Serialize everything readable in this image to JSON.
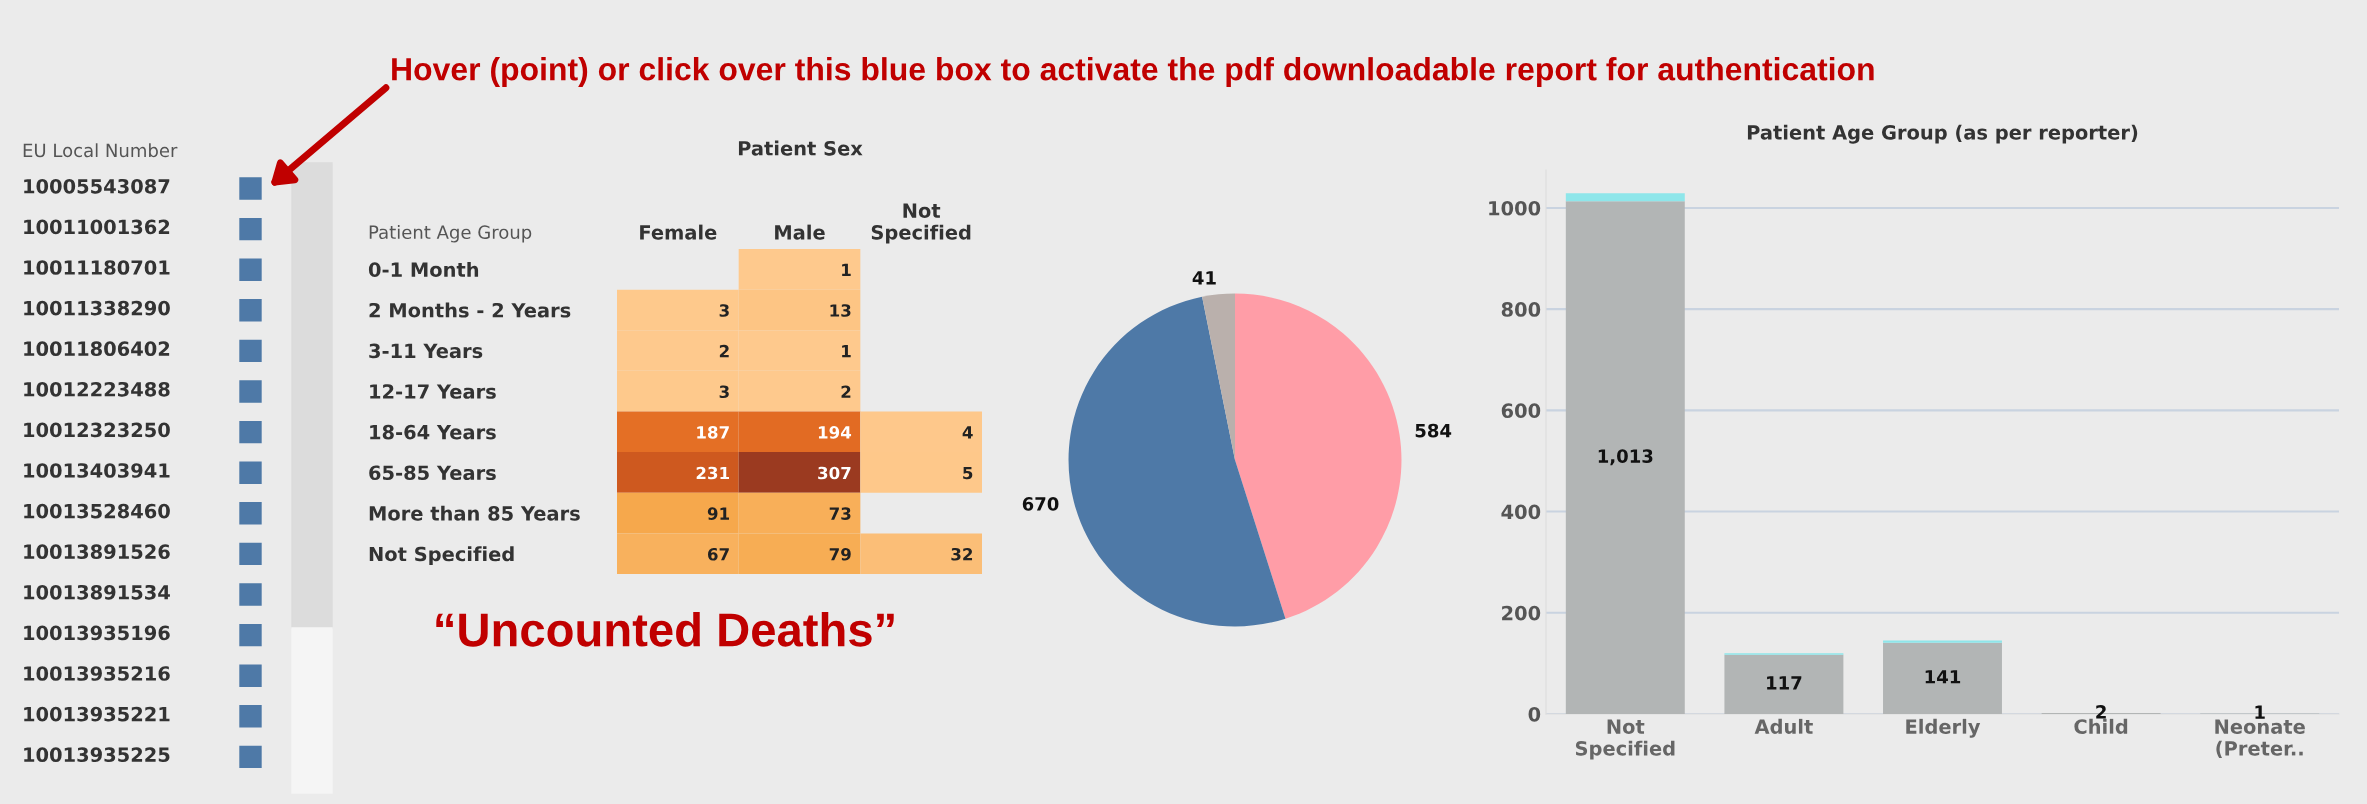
{
  "chart_data": [
    {
      "type": "other",
      "title": "EU Local Number",
      "categories": [
        "10005543087",
        "10011001362",
        "10011180701",
        "10011338290",
        "10011806402",
        "10012223488",
        "10012323250",
        "10013403941",
        "10013528460",
        "10013891526",
        "10013891534",
        "10013935196",
        "10013935216",
        "10013935221",
        "10013935225"
      ],
      "color": "#4e79a7",
      "annotations": [
        "Hover (point) or click over this blue box to activate the pdf downloadable report for authentication"
      ]
    },
    {
      "type": "heatmap",
      "title": "Patient Sex",
      "ylabel": "Patient Age Group",
      "categories": [
        "Female",
        "Male",
        "Not\nSpecified"
      ],
      "y_categories": [
        "0-1 Month",
        "2 Months - 2 Years",
        "3-11 Years",
        "12-17 Years",
        "18-64 Years",
        "65-85 Years",
        "More than 85 Years",
        "Not Specified"
      ],
      "cells": [
        [
          null,
          1,
          null
        ],
        [
          3,
          13,
          null
        ],
        [
          2,
          1,
          null
        ],
        [
          3,
          2,
          null
        ],
        [
          187,
          194,
          4
        ],
        [
          231,
          307,
          5
        ],
        [
          91,
          73,
          null
        ],
        [
          67,
          79,
          32
        ]
      ],
      "data_labels": true,
      "annotations": [
        "“Uncounted Deaths”"
      ]
    },
    {
      "type": "pie",
      "categories": [
        null,
        null,
        null
      ],
      "values": [
        584,
        670,
        41
      ],
      "colors": [
        "#ff9da7",
        "#4e79a7",
        "#bab0ac"
      ],
      "data_labels": true
    },
    {
      "type": "bar",
      "title": "Patient Age Group (as per reporter)",
      "categories": [
        "Not\nSpecified",
        "Adult",
        "Elderly",
        "Child",
        "Neonate\n(Preter.."
      ],
      "stacked": true,
      "series": [
        {
          "color": "#b2b5b5",
          "values": [
            1013,
            117,
            141,
            2,
            1
          ],
          "value_labels": [
            "1,013",
            "117",
            "141",
            "2",
            "1"
          ]
        },
        {
          "color": "#8ee6ea",
          "values": [
            16,
            3,
            4,
            null,
            null
          ]
        }
      ],
      "ylim": [
        0,
        1075
      ],
      "yticks": [
        0,
        200,
        400,
        600,
        800,
        1000
      ],
      "grid": "y",
      "legend": false
    }
  ]
}
